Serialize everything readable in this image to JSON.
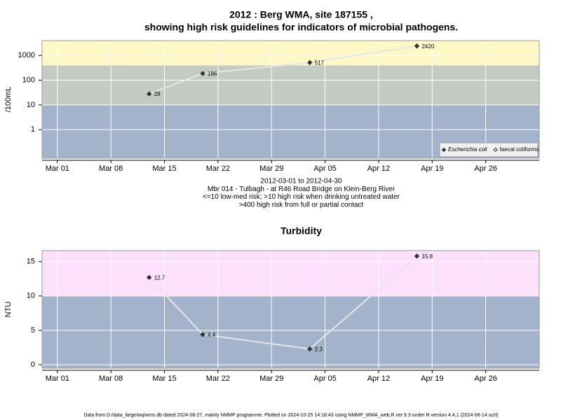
{
  "chart_data": [
    {
      "type": "line",
      "title": "2012 : Berg WMA, site 187155 ,",
      "subtitle": "showing high risk guidelines for indicators of microbial pathogens.",
      "y_label": "/100mL",
      "log_y": true,
      "grid": true,
      "x": [
        "Mar 13",
        "Mar 20",
        "Apr 03",
        "Apr 17"
      ],
      "xlim": [
        "Feb 28",
        "May 03"
      ],
      "xticks": [
        "Mar 01",
        "Mar 08",
        "Mar 15",
        "Mar 22",
        "Mar 29",
        "Apr 05",
        "Apr 12",
        "Apr 19",
        "Apr 26"
      ],
      "ylim": [
        0.07,
        4000
      ],
      "yticks": [
        1,
        10,
        100,
        1000
      ],
      "bands": {
        "breaks": [
          10,
          400
        ],
        "colors": [
          "#a3b3cb",
          "#c3cbc3",
          "#fef7c6"
        ]
      },
      "series": [
        {
          "name": "Escherichia coli",
          "color": "#333333",
          "marker": "filled",
          "italic": true,
          "values": [
            28,
            186,
            517,
            2420
          ]
        },
        {
          "name": "faecal coliforms",
          "color": "#333333",
          "marker": "open",
          "italic": false,
          "values": [
            null,
            null,
            null,
            null
          ]
        }
      ],
      "legend": "bottom-right",
      "notes": [
        "2012-03-01 to 2012-04-30",
        "Mbr 014 - Tulbagh - at R46 Road Bridge on Klein-Berg River",
        "<=10 low-med risk; >10 high risk when drinking untreated water",
        ">400 high risk from full or partial contact"
      ]
    },
    {
      "type": "line",
      "title": "Turbidity",
      "y_label": "NTU",
      "log_y": false,
      "grid": true,
      "x": [
        "Mar 13",
        "Mar 20",
        "Apr 03",
        "Apr 17"
      ],
      "xlim": [
        "Feb 28",
        "May 03"
      ],
      "xticks": [
        "Mar 01",
        "Mar 08",
        "Mar 15",
        "Mar 22",
        "Mar 29",
        "Apr 05",
        "Apr 12",
        "Apr 19",
        "Apr 26"
      ],
      "ylim": [
        -0.5,
        16.6
      ],
      "yticks": [
        0,
        5,
        10,
        15
      ],
      "bands": {
        "breaks": [
          10
        ],
        "colors": [
          "#a3b3cb",
          "#fde0fb"
        ]
      },
      "series": [
        {
          "name": "Turbidity",
          "color": "#333333",
          "marker": "filled",
          "italic": false,
          "values": [
            12.7,
            4.4,
            2.3,
            15.8
          ]
        }
      ]
    }
  ],
  "footer": "Data from D:/data_large/wq/wms.db dated 2024-08-27, mainly NMMP programme. Plotted on 2024-10-25 14:18:43 using NMMP_WMA_web.R ver 9.3 under R version 4.4.1 (2024-06-14 ucrt)"
}
